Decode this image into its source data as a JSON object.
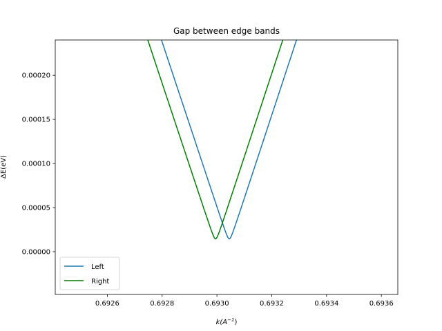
{
  "chart_data": {
    "type": "line",
    "title": "Gap between edge bands",
    "xlabel_main": "k",
    "xlabel_unit": "(A",
    "xlabel_exp": "−1",
    "xlabel_close": ")",
    "ylabel": "ΔE(eV)",
    "xlim": [
      0.69241,
      0.69366
    ],
    "ylim": [
      -4.85e-05,
      0.00024
    ],
    "xticks": [
      0.6926,
      0.6928,
      0.693,
      0.6932,
      0.6934,
      0.6936
    ],
    "xtick_labels": [
      "0.6926",
      "0.6928",
      "0.6930",
      "0.6932",
      "0.6934",
      "0.6936"
    ],
    "yticks": [
      0.0,
      5e-05,
      0.0001,
      0.00015,
      0.0002
    ],
    "ytick_labels": [
      "0.00000",
      "0.00005",
      "0.00010",
      "0.00015",
      "0.00020"
    ],
    "legend_position": "lower-left",
    "series": [
      {
        "name": "Left",
        "color": "#1f77b4",
        "x0": 0.693045,
        "y0": 1.45e-05,
        "slope_left": -0.936,
        "slope_right": 0.944
      },
      {
        "name": "Right",
        "color": "#008000",
        "x0": 0.692995,
        "y0": 1.45e-05,
        "slope_left": -0.936,
        "slope_right": 0.944
      }
    ]
  }
}
